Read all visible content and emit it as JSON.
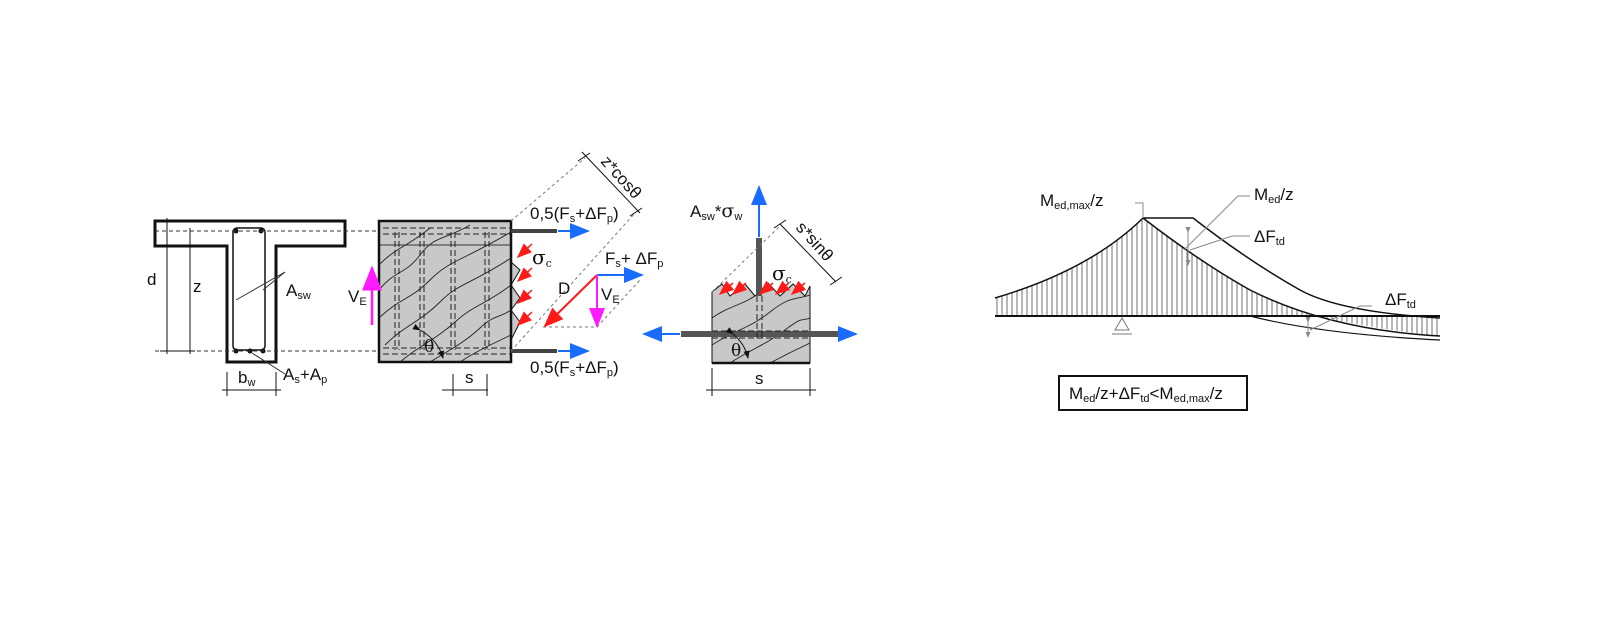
{
  "colors": {
    "tension_arrow": "#1a6cff",
    "compression_arrow": "#ff1a1a",
    "shear_arrow": "#ff1aff",
    "concrete_fill": "#c8c8c8"
  },
  "section": {
    "d": "d",
    "z": "z",
    "asw": {
      "main": "A",
      "sub": "sw"
    },
    "as_ap": {
      "a1": "A",
      "s1": "s",
      "plus": "+",
      "a2": "A",
      "s2": "p"
    },
    "bw": {
      "main": "b",
      "sub": "w"
    }
  },
  "truss": {
    "top_force": {
      "pre": "0,5(F",
      "s1": "s",
      "mid": "+ΔF",
      "s2": "p",
      "post": ")"
    },
    "bottom_force": {
      "pre": "0,5(F",
      "s1": "s",
      "mid": "+ΔF",
      "s2": "p",
      "post": ")"
    },
    "ve": {
      "main": "V",
      "sub": "E"
    },
    "sigma_c": {
      "main": "σ",
      "sub": "c"
    },
    "theta": "θ",
    "s": "s",
    "z_cos": "z*cosθ",
    "polygon": {
      "d": "D",
      "ve_main": "V",
      "ve_sub": "E",
      "fs_pre": "F",
      "fs_sub": "s",
      "fs_mid": "+ ΔF",
      "fs_sub2": "p"
    }
  },
  "detail": {
    "asw_sigma": {
      "a": "A",
      "sub": "sw",
      "mid": "*",
      "sig": "σ",
      "sub2": "w"
    },
    "s_sin": "s*sinθ",
    "sigma_c": {
      "main": "σ",
      "sub": "c"
    },
    "theta": "θ",
    "s": "s"
  },
  "shift_diagram": {
    "med_max": {
      "m": "M",
      "sub": "ed,max",
      "post": "/z"
    },
    "med": {
      "m": "M",
      "sub": "ed",
      "post": "/z"
    },
    "dftd1": {
      "m": "ΔF",
      "sub": "td"
    },
    "dftd2": {
      "m": "ΔF",
      "sub": "td"
    },
    "condition": {
      "m1": "M",
      "s1": "ed",
      "p1": "/z+ΔF",
      "s2": "td",
      "p2": "<M",
      "s3": "ed,max",
      "p3": "/z"
    }
  }
}
